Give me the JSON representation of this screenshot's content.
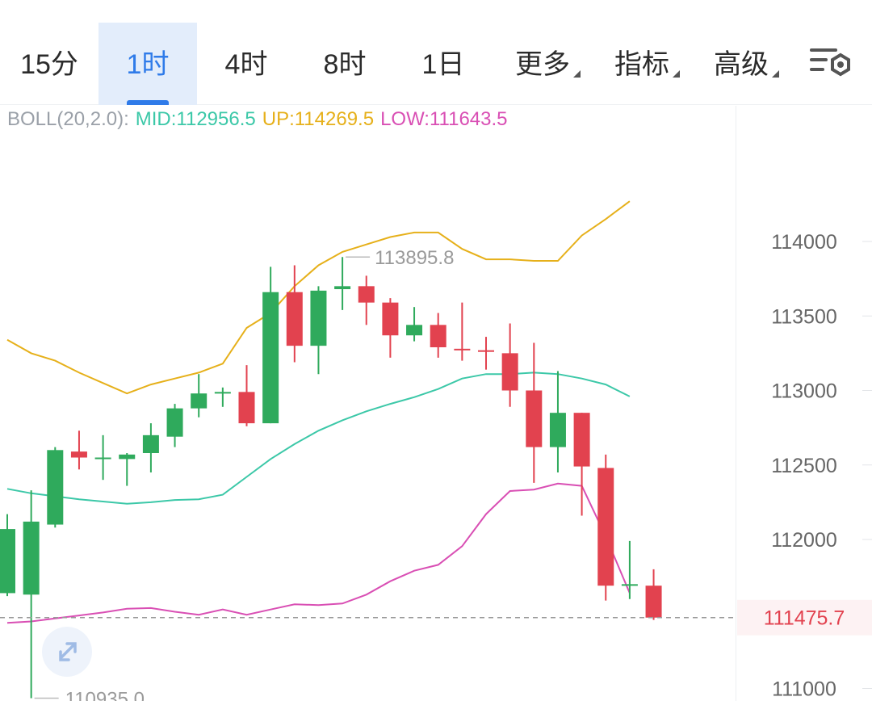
{
  "tabs": [
    {
      "label": "15分",
      "active": false,
      "caret": false
    },
    {
      "label": "1时",
      "active": true,
      "caret": false
    },
    {
      "label": "4时",
      "active": false,
      "caret": false
    },
    {
      "label": "8时",
      "active": false,
      "caret": false
    },
    {
      "label": "1日",
      "active": false,
      "caret": false
    },
    {
      "label": "更多",
      "active": false,
      "caret": true
    },
    {
      "label": "指标",
      "active": false,
      "caret": true
    },
    {
      "label": "高级",
      "active": false,
      "caret": true
    }
  ],
  "settings_icon": "chart-settings-icon",
  "legend": {
    "name": "BOLL(20,2.0):",
    "mid": "MID:112956.5",
    "up": "UP:114269.5",
    "low": "LOW:111643.5"
  },
  "colors": {
    "accent": "#2f7be9",
    "up_candle": "#2faa5c",
    "down_candle": "#e2424f",
    "mid": "#3cc8a8",
    "upper": "#e6b01a",
    "lower": "#d94fb4",
    "legend_name": "#9aa0a8",
    "last_price": "#e2424f"
  },
  "chart_data": {
    "type": "candlestick",
    "indicator": "BOLL(20,2.0)",
    "y_ticks": [
      114000,
      113500,
      113000,
      112500,
      112000,
      111000
    ],
    "ylim": [
      110880,
      115130
    ],
    "last_price": "111475.7",
    "high_label": "113895.8",
    "low_label": "110935.0",
    "candles": [
      {
        "o": 111640,
        "h": 112170,
        "l": 111620,
        "c": 112070
      },
      {
        "o": 111630,
        "h": 112330,
        "l": 110935,
        "c": 112120
      },
      {
        "o": 112100,
        "h": 112620,
        "l": 112080,
        "c": 112600
      },
      {
        "o": 112590,
        "h": 112730,
        "l": 112470,
        "c": 112550
      },
      {
        "o": 112550,
        "h": 112700,
        "l": 112400,
        "c": 112550
      },
      {
        "o": 112540,
        "h": 112580,
        "l": 112360,
        "c": 112570
      },
      {
        "o": 112580,
        "h": 112780,
        "l": 112450,
        "c": 112700
      },
      {
        "o": 112690,
        "h": 112910,
        "l": 112620,
        "c": 112880
      },
      {
        "o": 112880,
        "h": 113110,
        "l": 112820,
        "c": 112980
      },
      {
        "o": 112980,
        "h": 113020,
        "l": 112890,
        "c": 112990
      },
      {
        "o": 112990,
        "h": 113170,
        "l": 112760,
        "c": 112780
      },
      {
        "o": 112780,
        "h": 113830,
        "l": 112780,
        "c": 113660
      },
      {
        "o": 113660,
        "h": 113840,
        "l": 113190,
        "c": 113300
      },
      {
        "o": 113300,
        "h": 113700,
        "l": 113110,
        "c": 113670
      },
      {
        "o": 113680,
        "h": 113895.8,
        "l": 113540,
        "c": 113700
      },
      {
        "o": 113700,
        "h": 113770,
        "l": 113440,
        "c": 113590
      },
      {
        "o": 113590,
        "h": 113620,
        "l": 113220,
        "c": 113370
      },
      {
        "o": 113370,
        "h": 113560,
        "l": 113330,
        "c": 113440
      },
      {
        "o": 113440,
        "h": 113520,
        "l": 113220,
        "c": 113290
      },
      {
        "o": 113280,
        "h": 113590,
        "l": 113200,
        "c": 113270
      },
      {
        "o": 113270,
        "h": 113360,
        "l": 113140,
        "c": 113260
      },
      {
        "o": 113250,
        "h": 113450,
        "l": 112890,
        "c": 113000
      },
      {
        "o": 113000,
        "h": 113320,
        "l": 112380,
        "c": 112620
      },
      {
        "o": 112620,
        "h": 113130,
        "l": 112450,
        "c": 112850
      },
      {
        "o": 112850,
        "h": 112850,
        "l": 112160,
        "c": 112490
      },
      {
        "o": 112480,
        "h": 112570,
        "l": 111590,
        "c": 111690
      },
      {
        "o": 111690,
        "h": 111990,
        "l": 111600,
        "c": 111700
      },
      {
        "o": 111690,
        "h": 111800,
        "l": 111460,
        "c": 111475.7
      }
    ],
    "series": [
      {
        "name": "MID",
        "values": [
          112340,
          112310,
          112290,
          112270,
          112255,
          112240,
          112250,
          112265,
          112270,
          112300,
          112420,
          112540,
          112640,
          112730,
          112800,
          112860,
          112910,
          112955,
          113010,
          113080,
          113110,
          113110,
          113120,
          113110,
          113080,
          113040,
          112960
        ]
      },
      {
        "name": "UP",
        "values": [
          113340,
          113250,
          113200,
          113120,
          113050,
          112980,
          113040,
          113080,
          113120,
          113180,
          113420,
          113520,
          113700,
          113840,
          113930,
          113980,
          114030,
          114060,
          114060,
          113950,
          113880,
          113880,
          113870,
          113870,
          114040,
          114150,
          114270
        ]
      },
      {
        "name": "LOW",
        "values": [
          111440,
          111450,
          111470,
          111490,
          111510,
          111535,
          111540,
          111515,
          111495,
          111530,
          111495,
          111530,
          111565,
          111560,
          111570,
          111630,
          111720,
          111790,
          111830,
          111955,
          112170,
          112325,
          112335,
          112375,
          112360,
          112020,
          111640
        ]
      }
    ]
  }
}
